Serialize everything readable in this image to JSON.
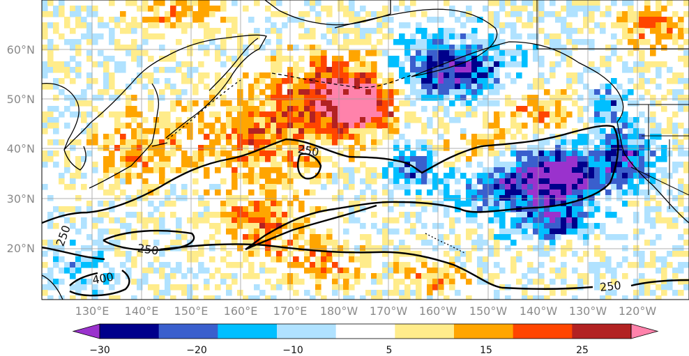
{
  "map": {
    "lon_labels": [
      "130°E",
      "140°E",
      "150°E",
      "160°E",
      "170°E",
      "180°W",
      "170°W",
      "160°W",
      "150°W",
      "140°W",
      "130°W",
      "120°W"
    ],
    "lat_labels": [
      "20°N",
      "30°N",
      "40°N",
      "50°N",
      "60°N"
    ],
    "contour_labels": [
      "250",
      "250",
      "250",
      "250",
      "400"
    ]
  },
  "colorbar": {
    "tick_labels": [
      "−30",
      "−20",
      "−10",
      "5",
      "15",
      "25"
    ],
    "colors": [
      "#9a32cd",
      "#00008b",
      "#3a5fcd",
      "#00bfff",
      "#b0e2ff",
      "#ffffff",
      "#ffec8b",
      "#ffa500",
      "#ff4500",
      "#b22222",
      "#ff82ab"
    ],
    "extend": "both"
  }
}
